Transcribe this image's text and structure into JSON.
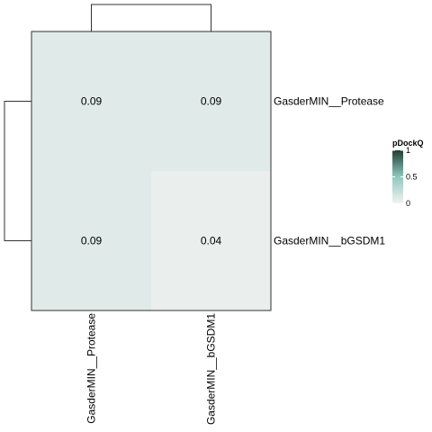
{
  "chart_data": {
    "type": "heatmap",
    "rows": [
      "GasderMIN__Protease",
      "GasderMIN__bGSDM1"
    ],
    "cols": [
      "GasderMIN__Protease",
      "GasderMIN__bGSDM1"
    ],
    "values": [
      [
        0.09,
        0.09
      ],
      [
        0.09,
        0.04
      ]
    ],
    "cell_labels": [
      [
        "0.09",
        "0.09"
      ],
      [
        "0.09",
        "0.04"
      ]
    ],
    "row_dendrogram": true,
    "col_dendrogram": true,
    "legend": {
      "title": "pDockQ",
      "placement": "right",
      "ticks": [
        1,
        0.5,
        0
      ],
      "tick_labels": [
        "1",
        "0.5",
        "0"
      ],
      "range": [
        0,
        1
      ],
      "colors": {
        "low": "#f2f2f2",
        "mid": "#8fc9bf",
        "high": "#1f3d33"
      }
    },
    "colors": {
      "border": "#333333",
      "dendrogram": "#333333"
    }
  }
}
